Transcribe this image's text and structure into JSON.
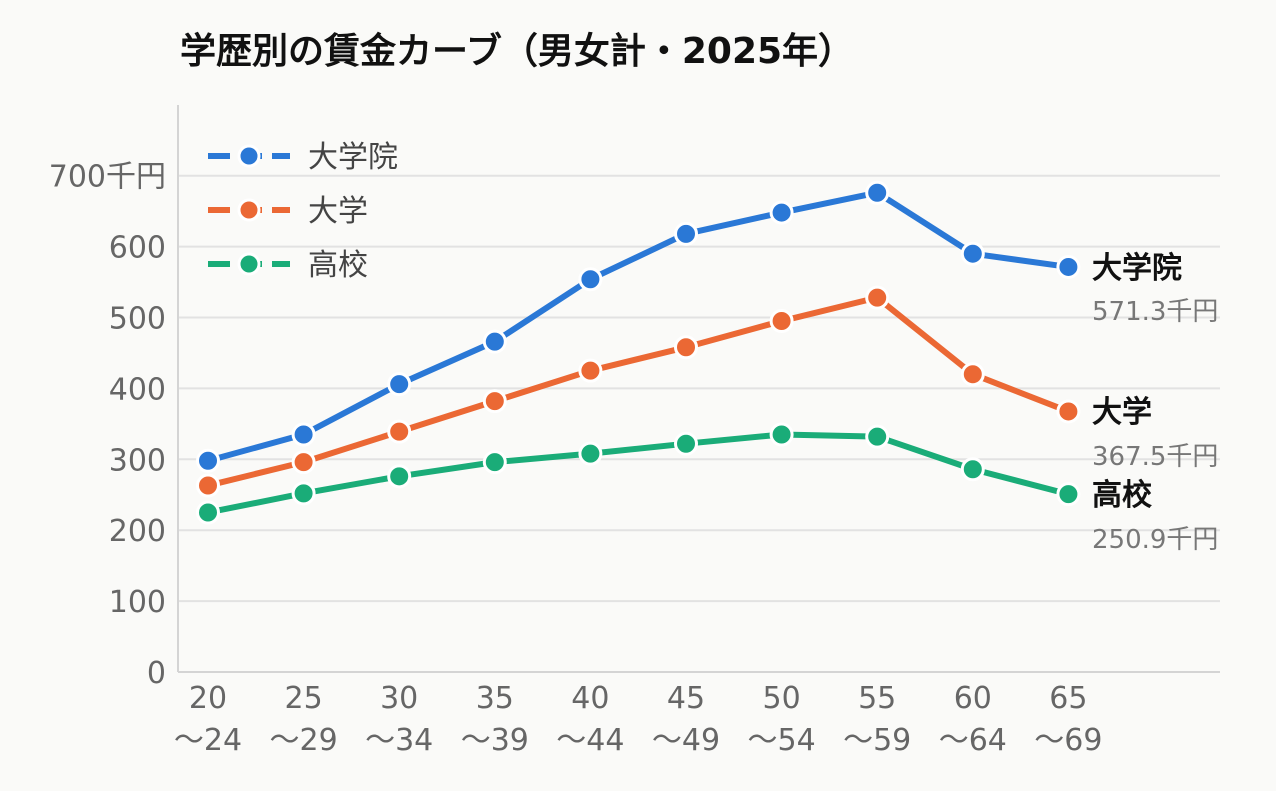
{
  "title": "学歴別の賃金カーブ（男女計・2025年）",
  "chart_data": {
    "type": "line",
    "title": "学歴別の賃金カーブ（男女計・2025年）",
    "x_tick_lines": [
      [
        "20",
        "〜24"
      ],
      [
        "25",
        "〜29"
      ],
      [
        "30",
        "〜34"
      ],
      [
        "35",
        "〜39"
      ],
      [
        "40",
        "〜44"
      ],
      [
        "45",
        "〜49"
      ],
      [
        "50",
        "〜54"
      ],
      [
        "55",
        "〜59"
      ],
      [
        "60",
        "〜64"
      ],
      [
        "65",
        "〜69"
      ]
    ],
    "categories": [
      "20〜24",
      "25〜29",
      "30〜34",
      "35〜39",
      "40〜44",
      "45〜49",
      "50〜54",
      "55〜59",
      "60〜64",
      "65〜69"
    ],
    "y_ticks": [
      "0",
      "100",
      "200",
      "300",
      "400",
      "500",
      "600",
      "700千円"
    ],
    "ylim": [
      0,
      800
    ],
    "grid": true,
    "legend_position": "top-left",
    "series": [
      {
        "name": "大学院",
        "color": "#2a78d6",
        "values": [
          298,
          335,
          406,
          466,
          554,
          618,
          648,
          676,
          590,
          571.3
        ],
        "end_label": "大学院",
        "end_value_label": "571.3千円"
      },
      {
        "name": "大学",
        "color": "#eb6834",
        "values": [
          263,
          296,
          339,
          382,
          425,
          458,
          495,
          528,
          420,
          367.5
        ],
        "end_label": "大学",
        "end_value_label": "367.5千円"
      },
      {
        "name": "高校",
        "color": "#1aac78",
        "values": [
          225,
          252,
          276,
          296,
          308,
          322,
          335,
          332,
          286,
          250.9
        ],
        "end_label": "高校",
        "end_value_label": "250.9千円"
      }
    ]
  }
}
